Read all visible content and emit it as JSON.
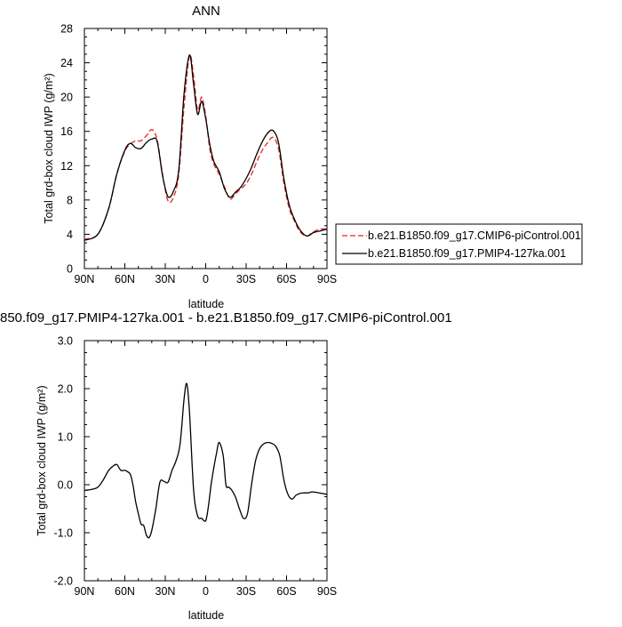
{
  "chart_data": [
    {
      "type": "line",
      "title": "ANN",
      "xlabel": "latitude",
      "ylabel": "Total grd-box cloud IWP (g/m²)",
      "x_ticks": [
        "90N",
        "60N",
        "30N",
        "0",
        "30S",
        "60S",
        "90S"
      ],
      "y_ticks": [
        "0",
        "4",
        "8",
        "12",
        "16",
        "20",
        "24",
        "28"
      ],
      "xlim": [
        90,
        -90
      ],
      "ylim": [
        0,
        28
      ],
      "grid": false,
      "legend_position": "right",
      "series": [
        {
          "name": "b.e21.B1850.f09_g17.CMIP6-piControl.001",
          "color": "#e8231f",
          "dash": "dashed",
          "x": [
            90,
            80,
            72,
            66,
            60,
            56,
            52,
            48,
            44,
            40,
            36,
            32,
            28,
            24,
            20,
            16,
            12,
            9,
            6,
            3,
            0,
            -3,
            -6,
            -10,
            -14,
            -18,
            -22,
            -26,
            -30,
            -34,
            -38,
            -42,
            -46,
            -50,
            -54,
            -58,
            -62,
            -66,
            -70,
            -75,
            -80,
            -85,
            -90
          ],
          "y": [
            3.4,
            4.0,
            7.0,
            11.0,
            13.7,
            14.5,
            14.9,
            14.9,
            15.5,
            16.2,
            15.0,
            11.0,
            7.9,
            8.3,
            11.0,
            19.0,
            24.8,
            22.5,
            18.5,
            20.0,
            17.8,
            14.0,
            12.2,
            11.0,
            9.5,
            8.1,
            8.7,
            9.3,
            9.9,
            11.0,
            12.5,
            13.8,
            14.7,
            15.3,
            14.0,
            10.0,
            7.0,
            5.5,
            4.3,
            3.8,
            4.3,
            4.6,
            4.6
          ]
        },
        {
          "name": "b.e21.B1850.f09_g17.PMIP4-127ka.001",
          "color": "#000000",
          "dash": "solid",
          "x": [
            90,
            80,
            72,
            66,
            60,
            56,
            52,
            48,
            44,
            40,
            36,
            32,
            28,
            24,
            20,
            16,
            12,
            9,
            6,
            3,
            0,
            -3,
            -6,
            -10,
            -14,
            -18,
            -22,
            -26,
            -30,
            -34,
            -38,
            -42,
            -46,
            -50,
            -54,
            -58,
            -62,
            -66,
            -70,
            -75,
            -80,
            -85,
            -90
          ],
          "y": [
            3.3,
            4.0,
            7.0,
            11.0,
            13.8,
            14.6,
            14.1,
            14.0,
            14.7,
            15.1,
            14.8,
            10.8,
            8.4,
            9.0,
            11.5,
            20.5,
            24.9,
            21.5,
            18.0,
            19.5,
            17.5,
            14.5,
            12.5,
            11.3,
            9.3,
            8.3,
            8.9,
            9.5,
            10.5,
            11.8,
            13.4,
            14.8,
            15.8,
            16.1,
            14.7,
            10.5,
            7.4,
            5.7,
            4.5,
            3.8,
            4.2,
            4.4,
            4.6
          ]
        }
      ]
    },
    {
      "type": "line",
      "title": "850.f09_g17.PMIP4-127ka.001 - b.e21.B1850.f09_g17.CMIP6-piControl.001",
      "xlabel": "latitude",
      "ylabel": "Total grd-box cloud IWP (g/m²)",
      "x_ticks": [
        "90N",
        "60N",
        "30N",
        "0",
        "30S",
        "60S",
        "90S"
      ],
      "y_ticks": [
        "-2.0",
        "-1.0",
        "0.0",
        "1.0",
        "2.0",
        "3.0"
      ],
      "xlim": [
        90,
        -90
      ],
      "ylim": [
        -2.0,
        3.0
      ],
      "grid": false,
      "series": [
        {
          "color": "#000000",
          "x": [
            90,
            85,
            80,
            76,
            72,
            69,
            66,
            63,
            60,
            58,
            56,
            54,
            52,
            50,
            48,
            46,
            44,
            42,
            40,
            37,
            34,
            31,
            28,
            25,
            22,
            19,
            16,
            14,
            12,
            9,
            6,
            3,
            0,
            -2,
            -4,
            -6,
            -8,
            -10,
            -13,
            -15,
            -17,
            -19,
            -22,
            -25,
            -28,
            -31,
            -34,
            -37,
            -40,
            -43,
            -46,
            -49,
            -52,
            -55,
            -58,
            -61,
            -64,
            -67,
            -70,
            -73,
            -76,
            -79,
            -82,
            -86,
            -90
          ],
          "y": [
            -0.12,
            -0.1,
            -0.05,
            0.1,
            0.3,
            0.38,
            0.42,
            0.3,
            0.3,
            0.27,
            0.22,
            0.0,
            -0.35,
            -0.6,
            -0.82,
            -0.85,
            -1.05,
            -1.1,
            -0.95,
            -0.5,
            0.05,
            0.07,
            0.05,
            0.3,
            0.5,
            0.85,
            1.8,
            2.1,
            1.5,
            -0.1,
            -0.65,
            -0.7,
            -0.75,
            -0.45,
            0.0,
            0.35,
            0.65,
            0.88,
            0.6,
            0.0,
            -0.05,
            -0.1,
            -0.25,
            -0.5,
            -0.7,
            -0.6,
            0.0,
            0.5,
            0.75,
            0.85,
            0.88,
            0.86,
            0.8,
            0.6,
            0.1,
            -0.2,
            -0.3,
            -0.22,
            -0.18,
            -0.17,
            -0.17,
            -0.15,
            -0.16,
            -0.18,
            -0.2
          ]
        }
      ]
    }
  ]
}
